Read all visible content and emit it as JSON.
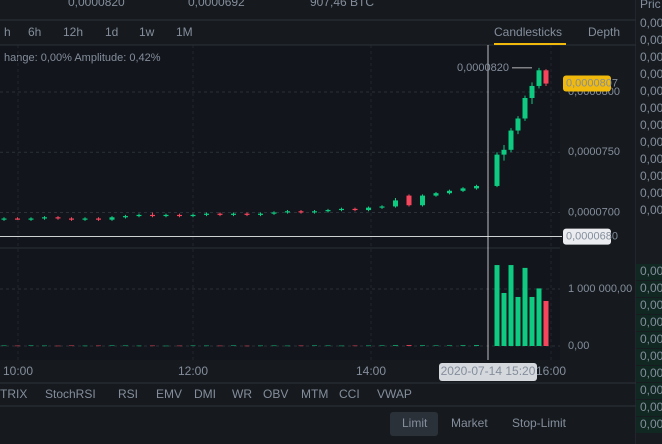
{
  "ticker": {
    "high": "0,0000820",
    "low": "0,0000692",
    "volume": "907,46 BTC"
  },
  "intervals": [
    "h",
    "6h",
    "12h",
    "1d",
    "1w",
    "1M"
  ],
  "views": [
    "Candlesticks",
    "Depth"
  ],
  "info": "hange: 0,00% Amplitude: 0,42%",
  "chart_data": {
    "type": "candlestick",
    "candles": [
      [
        6.94e-05,
        6.96e-05,
        6.93e-05,
        6.95e-05
      ],
      [
        6.95e-05,
        6.96e-05,
        6.94e-05,
        6.94e-05
      ],
      [
        6.94e-05,
        6.96e-05,
        6.93e-05,
        6.95e-05
      ],
      [
        6.95e-05,
        6.97e-05,
        6.94e-05,
        6.96e-05
      ],
      [
        6.96e-05,
        6.97e-05,
        6.94e-05,
        6.95e-05
      ],
      [
        6.95e-05,
        6.96e-05,
        6.93e-05,
        6.94e-05
      ],
      [
        6.94e-05,
        6.96e-05,
        6.93e-05,
        6.95e-05
      ],
      [
        6.95e-05,
        6.96e-05,
        6.93e-05,
        6.94e-05
      ],
      [
        6.94e-05,
        6.97e-05,
        6.93e-05,
        6.96e-05
      ],
      [
        6.96e-05,
        6.98e-05,
        6.95e-05,
        6.97e-05
      ],
      [
        6.97e-05,
        6.99e-05,
        6.96e-05,
        6.98e-05
      ],
      [
        6.98e-05,
        7e-05,
        6.96e-05,
        6.97e-05
      ],
      [
        6.97e-05,
        6.99e-05,
        6.96e-05,
        6.98e-05
      ],
      [
        6.98e-05,
        6.99e-05,
        6.96e-05,
        6.97e-05
      ],
      [
        6.97e-05,
        6.99e-05,
        6.96e-05,
        6.98e-05
      ],
      [
        6.98e-05,
        7e-05,
        6.97e-05,
        6.99e-05
      ],
      [
        6.99e-05,
        7e-05,
        6.97e-05,
        6.98e-05
      ],
      [
        6.98e-05,
        7e-05,
        6.97e-05,
        6.99e-05
      ],
      [
        6.99e-05,
        7e-05,
        6.97e-05,
        6.98e-05
      ],
      [
        6.98e-05,
        7e-05,
        6.97e-05,
        6.99e-05
      ],
      [
        6.99e-05,
        7.01e-05,
        6.98e-05,
        7e-05
      ],
      [
        7e-05,
        7.02e-05,
        6.99e-05,
        7.01e-05
      ],
      [
        7.01e-05,
        7.02e-05,
        6.99e-05,
        7e-05
      ],
      [
        7e-05,
        7.02e-05,
        6.99e-05,
        7.01e-05
      ],
      [
        7.01e-05,
        7.03e-05,
        7e-05,
        7.02e-05
      ],
      [
        7.02e-05,
        7.04e-05,
        7.01e-05,
        7.03e-05
      ],
      [
        7.03e-05,
        7.04e-05,
        7.01e-05,
        7.02e-05
      ],
      [
        7.02e-05,
        7.05e-05,
        7.01e-05,
        7.04e-05
      ],
      [
        7.04e-05,
        7.06e-05,
        7.03e-05,
        7.05e-05
      ],
      [
        7.05e-05,
        7.12e-05,
        7.04e-05,
        7.1e-05
      ],
      [
        7.14e-05,
        7.15e-05,
        7.05e-05,
        7.06e-05
      ],
      [
        7.06e-05,
        7.15e-05,
        7.05e-05,
        7.14e-05
      ],
      [
        7.14e-05,
        7.17e-05,
        7.13e-05,
        7.16e-05
      ],
      [
        7.16e-05,
        7.19e-05,
        7.15e-05,
        7.18e-05
      ],
      [
        7.18e-05,
        7.21e-05,
        7.17e-05,
        7.2e-05
      ],
      [
        7.2e-05,
        7.23e-05,
        7.19e-05,
        7.22e-05
      ],
      [
        7.22e-05,
        7.5e-05,
        7.21e-05,
        7.48e-05
      ],
      [
        7.48e-05,
        7.56e-05,
        7.43e-05,
        7.52e-05
      ],
      [
        7.52e-05,
        7.7e-05,
        7.5e-05,
        7.68e-05
      ],
      [
        7.68e-05,
        7.8e-05,
        7.65e-05,
        7.78e-05
      ],
      [
        7.78e-05,
        7.97e-05,
        7.76e-05,
        7.95e-05
      ],
      [
        7.95e-05,
        8.08e-05,
        7.9e-05,
        8.05e-05
      ],
      [
        8.05e-05,
        8.2e-05,
        8.03e-05,
        8.18e-05
      ],
      [
        8.18e-05,
        8.19e-05,
        8.05e-05,
        8.07e-05
      ]
    ],
    "volumes": [
      8000,
      6000,
      9000,
      7000,
      5000,
      8000,
      6000,
      7000,
      9000,
      8000,
      6000,
      7000,
      5000,
      6000,
      8000,
      7000,
      6000,
      9000,
      5000,
      7000,
      8000,
      6000,
      7000,
      9000,
      8000,
      6000,
      7000,
      8000,
      9000,
      12000,
      15000,
      11000,
      9000,
      10000,
      12000,
      14000,
      1420000,
      930000,
      1420000,
      860000,
      1370000,
      860000,
      1010000,
      790000
    ],
    "ylim": [
      6.73e-05,
      8.39e-05
    ],
    "yticks": [
      {
        "value": 7e-05,
        "label": "0,0000700"
      },
      {
        "value": 7.5e-05,
        "label": "0,0000750"
      },
      {
        "value": 8e-05,
        "label": "0,0000800"
      }
    ],
    "vlim": [
      0,
      1684000
    ],
    "vticks": [
      {
        "value": 0,
        "label": "0,00"
      },
      {
        "value": 1000000,
        "label": "1 000 000,00"
      }
    ],
    "last_price": {
      "value": 8.07e-05,
      "label": "0,0000807"
    },
    "high_marker": {
      "value": 8.2e-05,
      "label": "0,0000820"
    },
    "crosshair_price": {
      "value": 6.8e-05,
      "label": "0,0000680"
    },
    "crosshair_time": "2020-07-14 15:20",
    "time_labels": [
      "10:00",
      "12:00",
      "14:00",
      "16:00"
    ],
    "up_color": "#0ecb81",
    "down_color": "#f6465d"
  },
  "indicators": [
    "TRIX",
    "StochRSI",
    "RSI",
    "EMV",
    "DMI",
    "WR",
    "OBV",
    "MTM",
    "CCI",
    "VWAP"
  ],
  "order_tabs": [
    "Limit",
    "Market",
    "Stop-Limit"
  ],
  "orderbook": {
    "header": "Pric",
    "asks": [
      "0,00",
      "0,00",
      "0,00",
      "0,00",
      "0,00",
      "0,00",
      "0,00",
      "0,00",
      "0,00",
      "0,00",
      "0,00",
      "0,00"
    ],
    "bids": [
      "0,00",
      "0,00",
      "0,00",
      "0,00",
      "0,00",
      "0,00",
      "0,00",
      "0,00",
      "0,00",
      "0,00"
    ]
  }
}
